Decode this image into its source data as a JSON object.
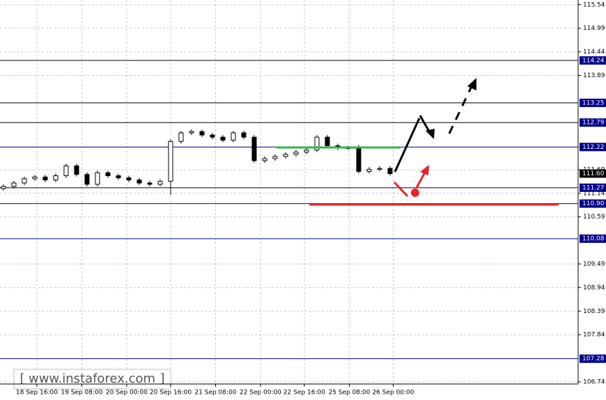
{
  "chart_data": {
    "type": "candlestick",
    "x": [
      0,
      1,
      2,
      3,
      4,
      5,
      6,
      7,
      8,
      9,
      10,
      11,
      12,
      13,
      14,
      15,
      16,
      17,
      18,
      19,
      20,
      21,
      22,
      23,
      24,
      25,
      26,
      27,
      28,
      29,
      30,
      31,
      32,
      33,
      34,
      35,
      36,
      37
    ],
    "open": [
      111.25,
      111.3,
      111.38,
      111.48,
      111.52,
      111.45,
      111.55,
      111.78,
      111.58,
      111.35,
      111.62,
      111.55,
      111.5,
      111.45,
      111.38,
      111.35,
      111.42,
      112.35,
      112.55,
      112.58,
      112.5,
      112.45,
      112.38,
      112.55,
      112.45,
      111.9,
      111.95,
      112.0,
      112.05,
      112.1,
      112.15,
      112.45,
      112.25,
      112.2,
      112.22,
      111.65,
      111.7,
      111.72
    ],
    "high": [
      111.35,
      111.43,
      111.53,
      111.57,
      111.57,
      111.6,
      111.83,
      111.83,
      111.63,
      111.67,
      111.67,
      111.6,
      111.55,
      111.5,
      111.43,
      111.47,
      112.4,
      112.6,
      112.63,
      112.63,
      112.55,
      112.5,
      112.6,
      112.6,
      112.5,
      112.0,
      112.05,
      112.1,
      112.15,
      112.2,
      112.5,
      112.5,
      112.3,
      112.25,
      112.27,
      111.75,
      111.77,
      111.77
    ],
    "low": [
      111.2,
      111.25,
      111.33,
      111.43,
      111.4,
      111.4,
      111.5,
      111.53,
      111.3,
      111.3,
      111.5,
      111.45,
      111.4,
      111.33,
      111.3,
      111.3,
      111.1,
      112.3,
      112.5,
      112.45,
      112.4,
      112.33,
      112.33,
      112.4,
      111.85,
      111.85,
      111.9,
      111.95,
      112.0,
      112.05,
      112.1,
      112.2,
      112.15,
      112.15,
      111.6,
      111.6,
      111.65,
      111.55
    ],
    "close": [
      111.3,
      111.38,
      111.48,
      111.52,
      111.45,
      111.55,
      111.78,
      111.58,
      111.35,
      111.62,
      111.55,
      111.5,
      111.45,
      111.38,
      111.35,
      111.42,
      112.35,
      112.55,
      112.58,
      112.5,
      112.45,
      112.38,
      112.55,
      112.45,
      111.9,
      111.95,
      112.0,
      112.05,
      112.1,
      112.15,
      112.45,
      112.25,
      112.2,
      112.2,
      111.65,
      111.7,
      111.72,
      111.6
    ],
    "color": "#000000",
    "xlim": [
      -0.33,
      55
    ],
    "xticks": [
      {
        "value": 3.2,
        "label": "18 Sep 16:00"
      },
      {
        "value": 7.5,
        "label": "19 Sep 08:00"
      },
      {
        "value": 11.8,
        "label": "20 Sep 00:00"
      },
      {
        "value": 16,
        "label": "20 Sep 16:00"
      },
      {
        "value": 20.3,
        "label": "21 Sep 08:00"
      },
      {
        "value": 24.6,
        "label": "22 Sep 00:00"
      },
      {
        "value": 28.8,
        "label": "22 Sep 16:00"
      },
      {
        "value": 33.1,
        "label": "25 Sep 08:00"
      },
      {
        "value": 37.3,
        "label": "26 Sep 00:00"
      }
    ],
    "ylim": [
      106.69,
      115.65
    ],
    "yticks": [
      115.54,
      114.99,
      114.44,
      113.89,
      111.69,
      111.14,
      110.59,
      109.49,
      108.94,
      108.39,
      107.84,
      106.74
    ],
    "grid": true,
    "levels": [
      114.24,
      113.25,
      112.79,
      112.22,
      111.27,
      {
        "value": 110.9,
        "label": "110.90"
      },
      110.08,
      107.28
    ],
    "level_colors": [
      "#000000",
      "#000000",
      "#000000",
      "#00008b",
      "#000000",
      "#00008b",
      "#00008b",
      "#00008b"
    ],
    "level_label_color": "#00008b",
    "last_price": {
      "value": 111.6,
      "label": "111.60"
    },
    "watermark": "www.instaforex.com"
  }
}
